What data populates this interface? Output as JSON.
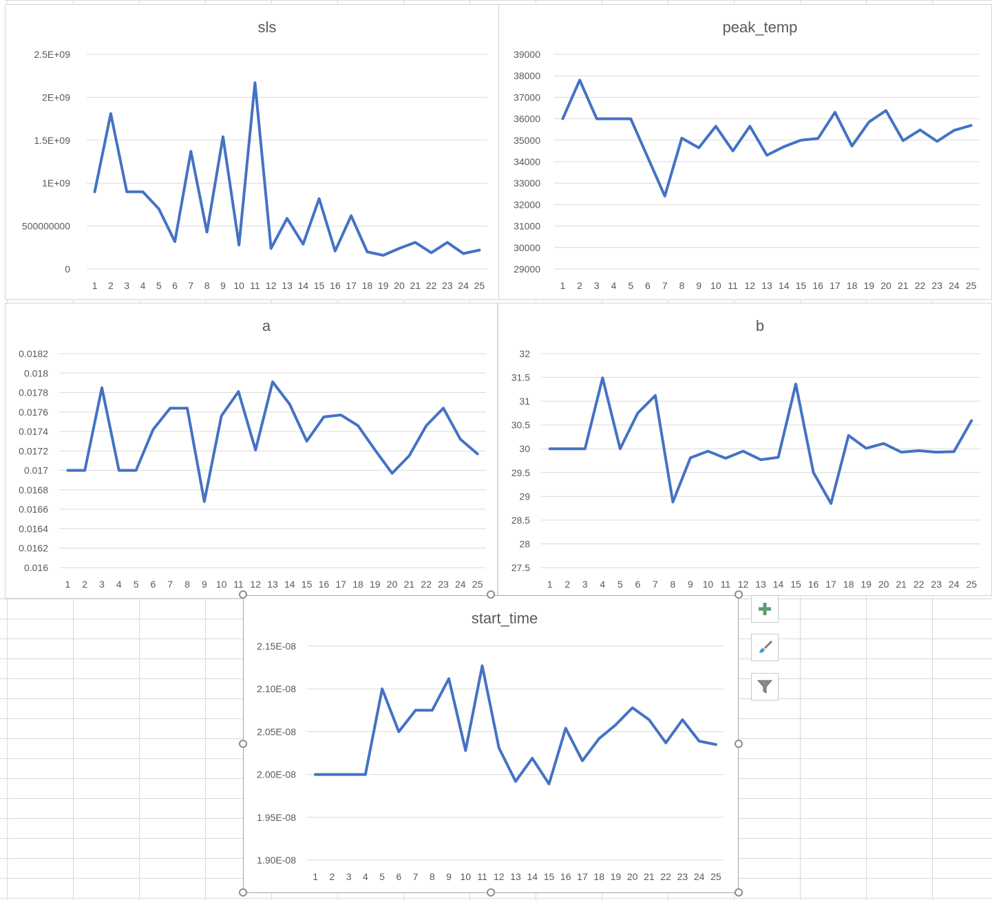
{
  "colors": {
    "line": "#4472c4",
    "gridline": "#d9d9d9",
    "text": "#595959"
  },
  "charts": [
    {
      "id": "sls",
      "chart_data": {
        "type": "line",
        "title": "sls",
        "categories": [
          "1",
          "2",
          "3",
          "4",
          "5",
          "6",
          "7",
          "8",
          "9",
          "10",
          "11",
          "12",
          "13",
          "14",
          "15",
          "16",
          "17",
          "18",
          "19",
          "20",
          "21",
          "22",
          "23",
          "24",
          "25"
        ],
        "values": [
          900000000,
          1810000000,
          900000000,
          900000000,
          700000000,
          320000000,
          1370000000,
          430000000,
          1540000000,
          280000000,
          2170000000,
          240000000,
          590000000,
          290000000,
          820000000,
          210000000,
          620000000,
          200000000,
          160000000,
          240000000,
          310000000,
          190000000,
          310000000,
          180000000,
          220000000
        ],
        "yticks": [
          0,
          500000000,
          1000000000,
          1500000000,
          2000000000,
          2500000000
        ],
        "ytick_labels": [
          "0",
          "500000000",
          "1E+09",
          "1.5E+09",
          "2E+09",
          "2.5E+09"
        ],
        "ylim": [
          0,
          2500000000
        ],
        "grid": true,
        "legend": "none"
      }
    },
    {
      "id": "peak_temp",
      "chart_data": {
        "type": "line",
        "title": "peak_temp",
        "categories": [
          "1",
          "2",
          "3",
          "4",
          "5",
          "6",
          "7",
          "8",
          "9",
          "10",
          "11",
          "12",
          "13",
          "14",
          "15",
          "16",
          "17",
          "18",
          "19",
          "20",
          "21",
          "22",
          "23",
          "24",
          "25"
        ],
        "values": [
          36000,
          37800,
          36000,
          36000,
          36000,
          34200,
          32400,
          35100,
          34650,
          35650,
          34500,
          35650,
          34300,
          34700,
          35000,
          35080,
          36300,
          34730,
          35850,
          36380,
          34980,
          35480,
          34950,
          35460,
          35690
        ],
        "yticks": [
          29000,
          30000,
          31000,
          32000,
          33000,
          34000,
          35000,
          36000,
          37000,
          38000,
          39000
        ],
        "ytick_labels": [
          "29000",
          "30000",
          "31000",
          "32000",
          "33000",
          "34000",
          "35000",
          "36000",
          "37000",
          "38000",
          "39000"
        ],
        "ylim": [
          29000,
          39000
        ],
        "grid": true,
        "legend": "none"
      }
    },
    {
      "id": "a",
      "chart_data": {
        "type": "line",
        "title": "a",
        "categories": [
          "1",
          "2",
          "3",
          "4",
          "5",
          "6",
          "7",
          "8",
          "9",
          "10",
          "11",
          "12",
          "13",
          "14",
          "15",
          "16",
          "17",
          "18",
          "19",
          "20",
          "21",
          "22",
          "23",
          "24",
          "25"
        ],
        "values": [
          0.017,
          0.017,
          0.01785,
          0.017,
          0.017,
          0.01742,
          0.01764,
          0.01764,
          0.01668,
          0.01756,
          0.01781,
          0.01721,
          0.01791,
          0.01768,
          0.0173,
          0.01755,
          0.01757,
          0.01746,
          0.01721,
          0.01697,
          0.01715,
          0.01746,
          0.01764,
          0.01732,
          0.01717
        ],
        "yticks": [
          0.016,
          0.0162,
          0.0164,
          0.0166,
          0.0168,
          0.017,
          0.0172,
          0.0174,
          0.0176,
          0.0178,
          0.018,
          0.0182
        ],
        "ytick_labels": [
          "0.016",
          "0.0162",
          "0.0164",
          "0.0166",
          "0.0168",
          "0.017",
          "0.0172",
          "0.0174",
          "0.0176",
          "0.0178",
          "0.018",
          "0.0182"
        ],
        "ylim": [
          0.016,
          0.0182
        ],
        "grid": true,
        "legend": "none"
      }
    },
    {
      "id": "b",
      "chart_data": {
        "type": "line",
        "title": "b",
        "categories": [
          "1",
          "2",
          "3",
          "4",
          "5",
          "6",
          "7",
          "8",
          "9",
          "10",
          "11",
          "12",
          "13",
          "14",
          "15",
          "16",
          "17",
          "18",
          "19",
          "20",
          "21",
          "22",
          "23",
          "24",
          "25"
        ],
        "values": [
          30,
          30,
          30,
          31.49,
          30,
          30.75,
          31.12,
          28.88,
          29.81,
          29.95,
          29.8,
          29.95,
          29.77,
          29.82,
          31.36,
          29.5,
          28.85,
          30.28,
          30.01,
          30.11,
          29.93,
          29.96,
          29.93,
          29.94,
          30.59
        ],
        "yticks": [
          27.5,
          28,
          28.5,
          29,
          29.5,
          30,
          30.5,
          31,
          31.5,
          32
        ],
        "ytick_labels": [
          "27.5",
          "28",
          "28.5",
          "29",
          "29.5",
          "30",
          "30.5",
          "31",
          "31.5",
          "32"
        ],
        "ylim": [
          27.5,
          32
        ],
        "grid": true,
        "legend": "none"
      }
    },
    {
      "id": "start_time",
      "chart_data": {
        "type": "line",
        "title": "start_time",
        "categories": [
          "1",
          "2",
          "3",
          "4",
          "5",
          "6",
          "7",
          "8",
          "9",
          "10",
          "11",
          "12",
          "13",
          "14",
          "15",
          "16",
          "17",
          "18",
          "19",
          "20",
          "21",
          "22",
          "23",
          "24",
          "25"
        ],
        "values": [
          2e-08,
          2e-08,
          2e-08,
          2e-08,
          2.1e-08,
          2.05e-08,
          2.075e-08,
          2.075e-08,
          2.112e-08,
          2.028e-08,
          2.127e-08,
          2.031e-08,
          1.992e-08,
          2.019e-08,
          1.989e-08,
          2.054e-08,
          2.016e-08,
          2.042e-08,
          2.058e-08,
          2.078e-08,
          2.064e-08,
          2.037e-08,
          2.064e-08,
          2.039e-08,
          2.035e-08
        ],
        "yticks": [
          1.9e-08,
          1.95e-08,
          2e-08,
          2.05e-08,
          2.1e-08,
          2.15e-08
        ],
        "ytick_labels": [
          "1.90E-08",
          "1.95E-08",
          "2.00E-08",
          "2.05E-08",
          "2.10E-08",
          "2.15E-08"
        ],
        "ylim": [
          1.9e-08,
          2.15e-08
        ],
        "grid": true,
        "legend": "none"
      }
    }
  ],
  "chart_tools": [
    {
      "name": "chart-elements-button",
      "icon": "plus-icon"
    },
    {
      "name": "chart-styles-button",
      "icon": "paintbrush-icon"
    },
    {
      "name": "chart-filters-button",
      "icon": "funnel-icon"
    }
  ]
}
